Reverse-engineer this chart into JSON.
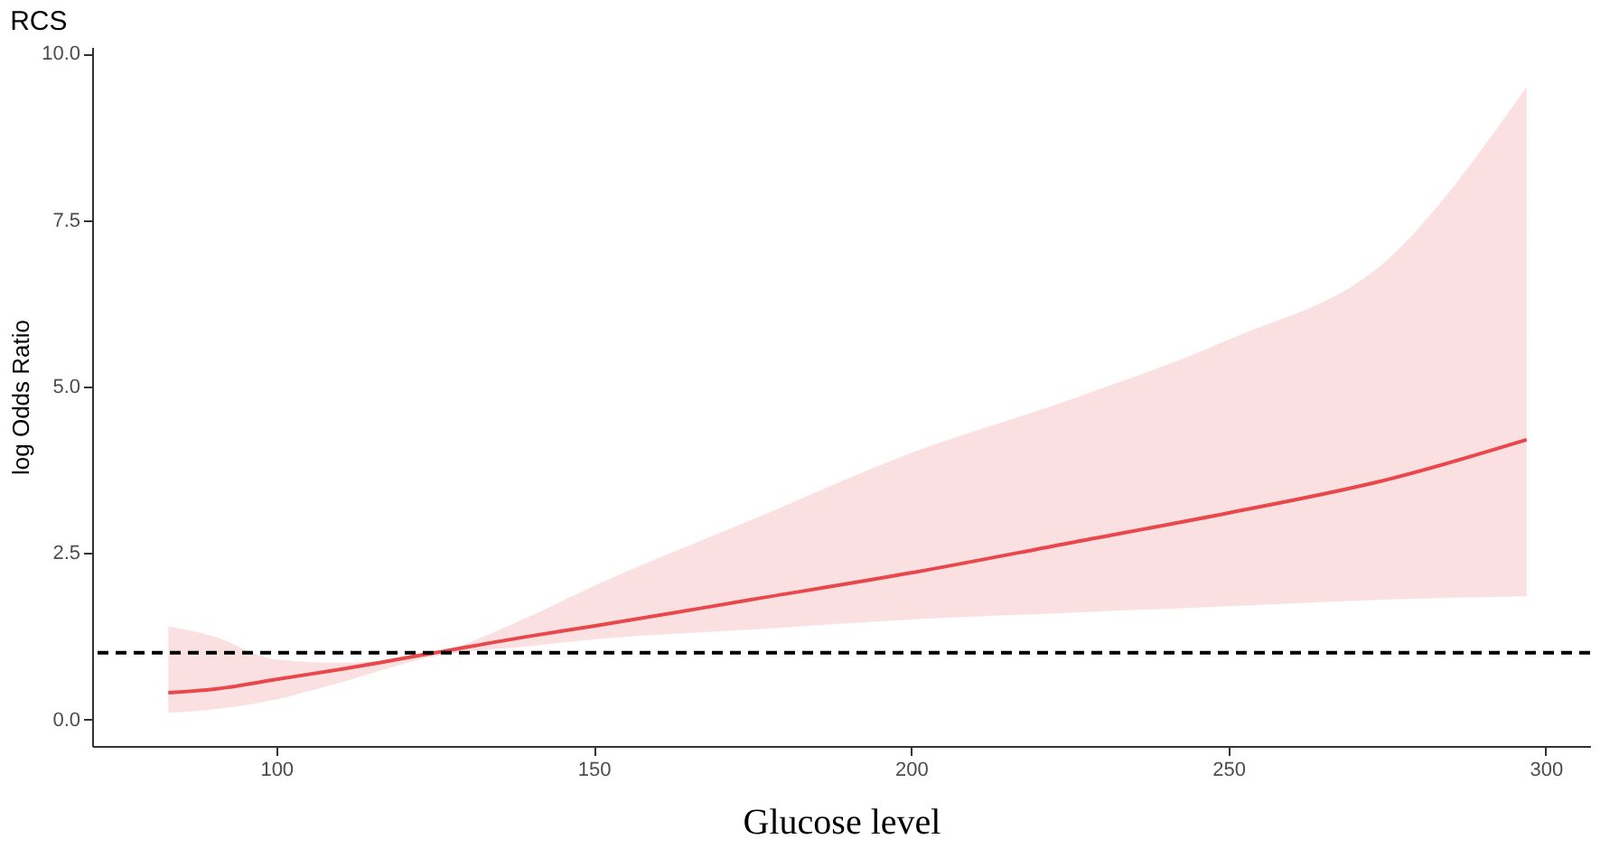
{
  "chart_data": {
    "type": "line",
    "title": "RCS",
    "xlabel": "Glucose level",
    "ylabel": "log Odds Ratio",
    "x": [
      83,
      90,
      100,
      110,
      125,
      140,
      150,
      175,
      200,
      225,
      250,
      275,
      297
    ],
    "series": [
      {
        "color": "#e8474b",
        "values": [
          0.4,
          0.45,
          0.6,
          0.75,
          1.0,
          1.25,
          1.4,
          1.8,
          2.2,
          2.65,
          3.1,
          3.6,
          4.2
        ],
        "lower": [
          0.1,
          0.15,
          0.3,
          0.55,
          0.95,
          1.1,
          1.2,
          1.35,
          1.5,
          1.6,
          1.7,
          1.8,
          1.85
        ],
        "upper": [
          1.4,
          1.25,
          0.9,
          0.85,
          1.0,
          1.55,
          2.0,
          3.0,
          4.0,
          4.8,
          5.7,
          6.9,
          9.5
        ]
      }
    ],
    "xlim": [
      71,
      307
    ],
    "xticks": [
      100,
      150,
      200,
      250,
      300
    ],
    "ylim": [
      -0.4,
      10.1
    ],
    "yticks": [
      {
        "value": 0,
        "label": "0.0"
      },
      2.5,
      {
        "value": 5,
        "label": "5.0"
      },
      7.5,
      {
        "value": 10,
        "label": "10.0"
      }
    ],
    "ref_lines": [
      {
        "axis": "y",
        "value": 1,
        "color": "#000000",
        "line_style": "dashed"
      }
    ],
    "grid": false,
    "line_style": "solid",
    "marker": "none"
  }
}
